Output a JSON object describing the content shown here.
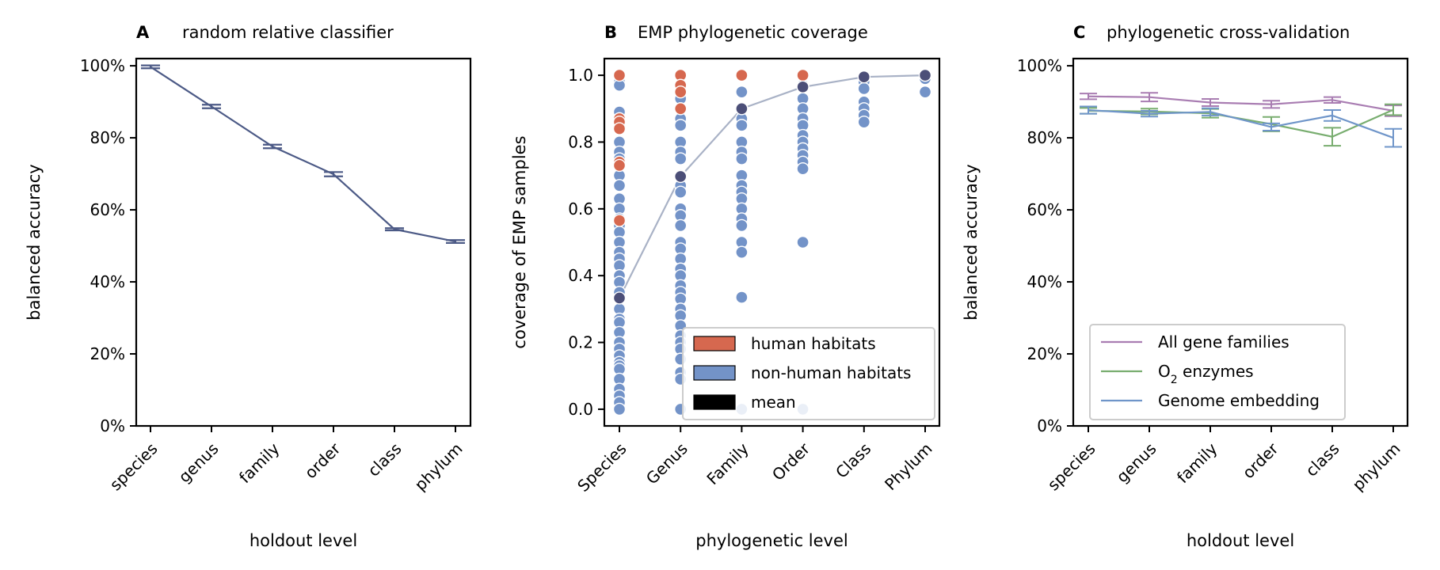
{
  "colors": {
    "panel_a_line": "#4c5a86",
    "human": "#d6684f",
    "nonhuman": "#7393c8",
    "mean_point": "#4c4f78",
    "mean_line": "#a9b2c6",
    "all_gene": "#a97db2",
    "o2": "#78ad6f",
    "embedding": "#6f95c9"
  },
  "chart_data": [
    {
      "type": "line",
      "panel_letter": "A",
      "title": "random relative classifier",
      "xlabel": "holdout level",
      "ylabel": "balanced accuracy",
      "categories": [
        "species",
        "genus",
        "family",
        "order",
        "class",
        "phylum"
      ],
      "ylim": [
        0,
        1.02
      ],
      "yticks": [
        0,
        0.2,
        0.4,
        0.6,
        0.8,
        1.0
      ],
      "ytick_labels": [
        "0%",
        "20%",
        "40%",
        "60%",
        "80%",
        "100%"
      ],
      "series": [
        {
          "values": [
            0.997,
            0.887,
            0.776,
            0.699,
            0.546,
            0.512
          ],
          "err": [
            0.004,
            0.005,
            0.005,
            0.006,
            0.003,
            0.004
          ]
        }
      ],
      "grid": false
    },
    {
      "type": "scatter",
      "panel_letter": "B",
      "title": "EMP phylogenetic coverage",
      "xlabel": "phylogenetic level",
      "ylabel": "coverage of EMP samples",
      "categories": [
        "Species",
        "Genus",
        "Family",
        "Order",
        "Class",
        "Phylum"
      ],
      "ylim": [
        -0.05,
        1.05
      ],
      "yticks": [
        0,
        0.2,
        0.4,
        0.6,
        0.8,
        1.0
      ],
      "ytick_labels": [
        "0.0",
        "0.2",
        "0.4",
        "0.6",
        "0.8",
        "1.0"
      ],
      "legend": {
        "position": "lower-right",
        "entries": [
          "human habitats",
          "non-human habitats",
          "mean"
        ]
      },
      "mean": [
        0.333,
        0.697,
        0.9,
        0.965,
        0.995,
        1.0
      ],
      "human": [
        [
          1.0,
          0.87,
          0.86,
          0.84,
          0.74,
          0.73,
          0.565
        ],
        [
          1.0,
          0.97,
          0.95,
          0.9
        ],
        [
          1.0
        ],
        [
          1.0
        ],
        [],
        []
      ],
      "nonhuman": [
        [
          0.98,
          0.97,
          0.89,
          0.87,
          0.85,
          0.8,
          0.77,
          0.75,
          0.7,
          0.67,
          0.63,
          0.6,
          0.57,
          0.55,
          0.53,
          0.5,
          0.47,
          0.45,
          0.43,
          0.4,
          0.38,
          0.35,
          0.3,
          0.27,
          0.26,
          0.23,
          0.2,
          0.18,
          0.16,
          0.14,
          0.13,
          0.12,
          0.09,
          0.06,
          0.04,
          0.02,
          0.0
        ],
        [
          0.93,
          0.9,
          0.87,
          0.85,
          0.8,
          0.77,
          0.75,
          0.7,
          0.67,
          0.65,
          0.6,
          0.58,
          0.55,
          0.5,
          0.48,
          0.45,
          0.42,
          0.4,
          0.37,
          0.35,
          0.33,
          0.3,
          0.28,
          0.25,
          0.22,
          0.2,
          0.18,
          0.15,
          0.11,
          0.09,
          0.0
        ],
        [
          0.95,
          0.9,
          0.87,
          0.85,
          0.8,
          0.77,
          0.75,
          0.7,
          0.67,
          0.65,
          0.63,
          0.6,
          0.57,
          0.55,
          0.5,
          0.47,
          0.335,
          0.0
        ],
        [
          0.97,
          0.93,
          0.9,
          0.87,
          0.85,
          0.82,
          0.8,
          0.78,
          0.76,
          0.74,
          0.72,
          0.5,
          0.0
        ],
        [
          0.98,
          0.96,
          0.92,
          0.9,
          0.88,
          0.86
        ],
        [
          0.99,
          0.95
        ]
      ]
    },
    {
      "type": "line",
      "panel_letter": "C",
      "title": "phylogenetic cross-validation",
      "xlabel": "holdout level",
      "ylabel": "balanced accuracy",
      "categories": [
        "species",
        "genus",
        "family",
        "order",
        "class",
        "phylum"
      ],
      "ylim": [
        0,
        1.02
      ],
      "yticks": [
        0,
        0.2,
        0.4,
        0.6,
        0.8,
        1.0
      ],
      "ytick_labels": [
        "0%",
        "20%",
        "40%",
        "60%",
        "80%",
        "100%"
      ],
      "legend": {
        "position": "lower-left",
        "entries": [
          "All gene families",
          "O",
          "Genome embedding"
        ],
        "o2_subscript": "2",
        "o2_suffix": " enzymes"
      },
      "series": [
        {
          "name": "All gene families",
          "values": [
            0.915,
            0.913,
            0.898,
            0.893,
            0.905,
            0.875
          ],
          "err": [
            0.008,
            0.012,
            0.01,
            0.01,
            0.008,
            0.015
          ]
        },
        {
          "name": "O2 enzymes",
          "values": [
            0.875,
            0.873,
            0.868,
            0.838,
            0.803,
            0.878
          ],
          "err": [
            0.008,
            0.008,
            0.012,
            0.02,
            0.025,
            0.015
          ]
        },
        {
          "name": "Genome embedding",
          "values": [
            0.877,
            0.867,
            0.872,
            0.83,
            0.862,
            0.8
          ],
          "err": [
            0.01,
            0.008,
            0.01,
            0.01,
            0.015,
            0.025
          ]
        }
      ],
      "grid": false
    }
  ]
}
